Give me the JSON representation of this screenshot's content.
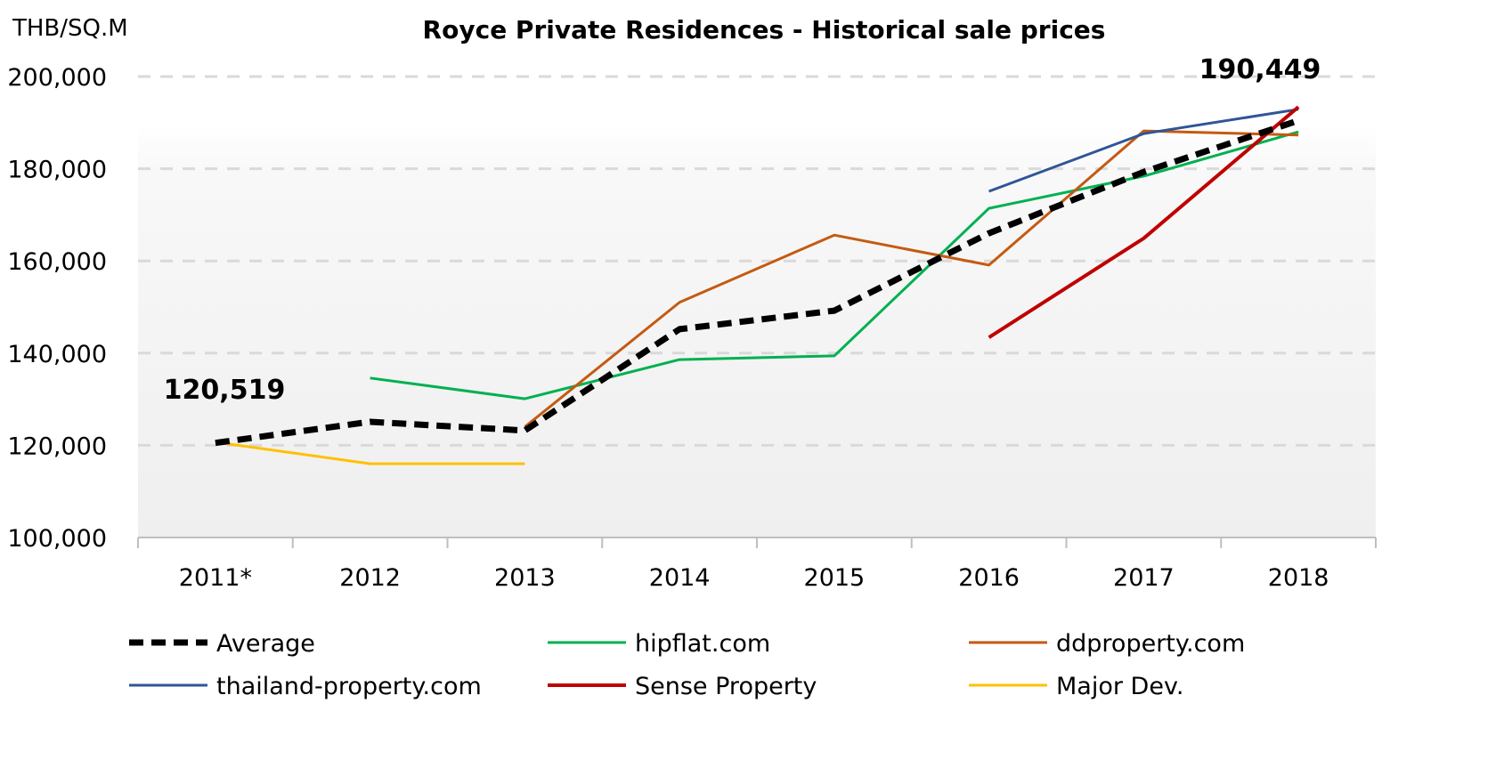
{
  "chart_data": {
    "type": "line",
    "title": "Royce Private Residences - Historical sale prices",
    "ylabel": "THB/SQ.M",
    "xlabel": "",
    "categories": [
      "2011*",
      "2012",
      "2013",
      "2014",
      "2015",
      "2016",
      "2017",
      "2018"
    ],
    "ylim": [
      100000,
      200000
    ],
    "yticks": [
      100000,
      120000,
      140000,
      160000,
      180000,
      200000
    ],
    "ytick_labels": [
      "100,000",
      "120,000",
      "140,000",
      "160,000",
      "180,000",
      "200,000"
    ],
    "grid": true,
    "legend_position": "bottom",
    "series": [
      {
        "name": "Average",
        "color": "#000000",
        "dashed": true,
        "values": [
          120519,
          125100,
          123200,
          145200,
          149200,
          166000,
          179300,
          190449
        ]
      },
      {
        "name": "hipflat.com",
        "color": "#00B050",
        "values": [
          null,
          134600,
          130100,
          138600,
          139400,
          171400,
          178400,
          188000
        ]
      },
      {
        "name": "ddproperty.com",
        "color": "#C55A11",
        "values": [
          null,
          null,
          124000,
          151000,
          165600,
          159100,
          188200,
          187300
        ]
      },
      {
        "name": "thailand-property.com",
        "color": "#2F5597",
        "values": [
          null,
          null,
          null,
          null,
          null,
          175100,
          187600,
          192900
        ]
      },
      {
        "name": "Sense Property",
        "color": "#C00000",
        "values": [
          null,
          null,
          null,
          null,
          null,
          143400,
          164900,
          193400
        ]
      },
      {
        "name": "Major Dev.",
        "color": "#FFC000",
        "values": [
          120700,
          116000,
          116000,
          null,
          null,
          null,
          null,
          null
        ]
      }
    ],
    "annotations": [
      {
        "text": "120,519",
        "category": "2011*",
        "value": 120519
      },
      {
        "text": "190,449",
        "category": "2018",
        "value": 190449
      }
    ]
  }
}
